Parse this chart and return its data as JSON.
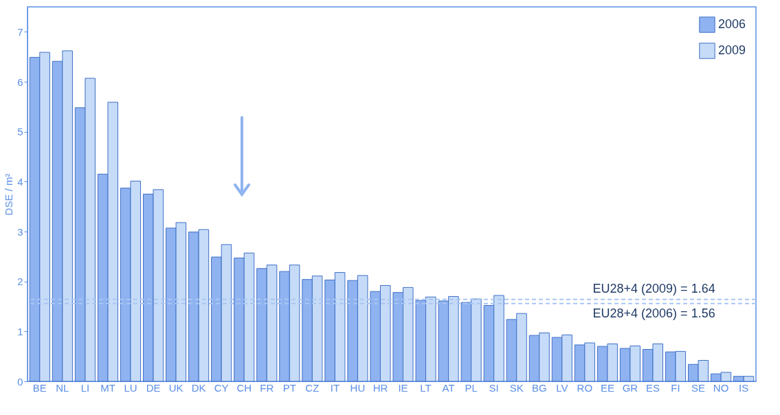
{
  "chart_data": {
    "type": "bar",
    "ylabel": "DSE / m²",
    "categories": [
      "BE",
      "NL",
      "LI",
      "MT",
      "LU",
      "DE",
      "UK",
      "DK",
      "CY",
      "CH",
      "FR",
      "PT",
      "CZ",
      "IT",
      "HU",
      "HR",
      "IE",
      "LT",
      "AT",
      "PL",
      "SI",
      "SK",
      "BG",
      "LV",
      "RO",
      "EE",
      "GR",
      "ES",
      "FI",
      "SE",
      "NO",
      "IS"
    ],
    "series": [
      {
        "name": "2006",
        "color": "#8fb3f0",
        "values": [
          6.49,
          6.41,
          5.48,
          4.15,
          3.87,
          3.75,
          3.07,
          2.99,
          2.49,
          2.47,
          2.26,
          2.2,
          2.04,
          2.03,
          2.02,
          1.8,
          1.78,
          1.62,
          1.61,
          1.58,
          1.52,
          1.24,
          0.92,
          0.88,
          0.73,
          0.7,
          0.66,
          0.64,
          0.59,
          0.34,
          0.15,
          0.1
        ]
      },
      {
        "name": "2009",
        "color": "#c6dbf7",
        "values": [
          6.59,
          6.62,
          6.07,
          5.59,
          4.01,
          3.84,
          3.18,
          3.04,
          2.74,
          2.57,
          2.33,
          2.33,
          2.11,
          2.18,
          2.12,
          1.92,
          1.88,
          1.69,
          1.7,
          1.65,
          1.72,
          1.36,
          0.97,
          0.93,
          0.77,
          0.75,
          0.71,
          0.75,
          0.6,
          0.42,
          0.18,
          0.1
        ]
      }
    ],
    "ylim": [
      0,
      7.5
    ],
    "yticks": [
      0,
      1,
      2,
      3,
      4,
      5,
      6,
      7
    ],
    "grid": false,
    "legend": "top right",
    "ref_lines": [
      {
        "axis": "y",
        "value": 1.64,
        "label": "EU28+4 (2009) = 1.64",
        "color": "#a9c6f3",
        "line_style": "dashed"
      },
      {
        "axis": "y",
        "value": 1.56,
        "label": "EU28+4 (2006) = 1.56",
        "color": "#a9c6f3",
        "line_style": "dashed"
      }
    ]
  }
}
